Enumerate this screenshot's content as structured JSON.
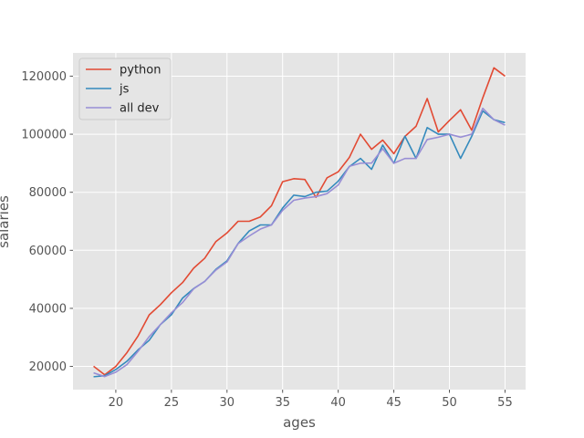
{
  "chart_data": {
    "type": "line",
    "xlabel": "ages",
    "ylabel": "salaries",
    "xlim": [
      16.15,
      56.85
    ],
    "ylim": [
      12000,
      128000
    ],
    "xticks": [
      20,
      25,
      30,
      35,
      40,
      45,
      50,
      55
    ],
    "yticks": [
      20000,
      40000,
      60000,
      80000,
      100000,
      120000
    ],
    "xtick_labels": [
      "20",
      "25",
      "30",
      "35",
      "40",
      "45",
      "50",
      "55"
    ],
    "ytick_labels": [
      "20000",
      "40000",
      "60000",
      "80000",
      "100000",
      "120000"
    ],
    "grid": true,
    "legend_position": "upper-left",
    "x": [
      18,
      19,
      20,
      21,
      22,
      23,
      24,
      25,
      26,
      27,
      28,
      29,
      30,
      31,
      32,
      33,
      34,
      35,
      36,
      37,
      38,
      39,
      40,
      41,
      42,
      43,
      44,
      45,
      46,
      47,
      48,
      49,
      50,
      51,
      52,
      53,
      54,
      55
    ],
    "series": [
      {
        "name": "python",
        "color": "#e24a33",
        "values": [
          20046,
          17100,
          20000,
          24744,
          30500,
          37732,
          41247,
          45372,
          48876,
          53850,
          57287,
          63016,
          65998,
          70003,
          70000,
          71496,
          75370,
          83640,
          84666,
          84392,
          78254,
          85000,
          87038,
          91991,
          100000,
          94796,
          97962,
          93302,
          99240,
          102736,
          112285,
          100771,
          104708,
          108423,
          101407,
          112542,
          122870,
          120000
        ]
      },
      {
        "name": "js",
        "color": "#348abd",
        "values": [
          16446,
          16791,
          18942,
          21780,
          25704,
          29000,
          34372,
          37810,
          43515,
          46823,
          49293,
          53437,
          56373,
          62375,
          66674,
          68745,
          68746,
          74583,
          79000,
          78508,
          79996,
          80403,
          83820,
          88833,
          91660,
          87892,
          96243,
          90000,
          99313,
          91660,
          102264,
          100000,
          100000,
          91660,
          99240,
          108000,
          105000,
          104000
        ]
      },
      {
        "name": "all dev",
        "color": "#988ed5",
        "values": [
          17784,
          16500,
          18012,
          20628,
          25206,
          30252,
          34368,
          38496,
          42000,
          46752,
          49320,
          53200,
          56000,
          62316,
          64928,
          67317,
          68748,
          73752,
          77232,
          78000,
          78508,
          79536,
          82488,
          88935,
          90000,
          90056,
          95000,
          90000,
          91633,
          91660,
          98150,
          98964,
          100000,
          98988,
          100000,
          108923,
          105000,
          103117
        ]
      }
    ]
  }
}
